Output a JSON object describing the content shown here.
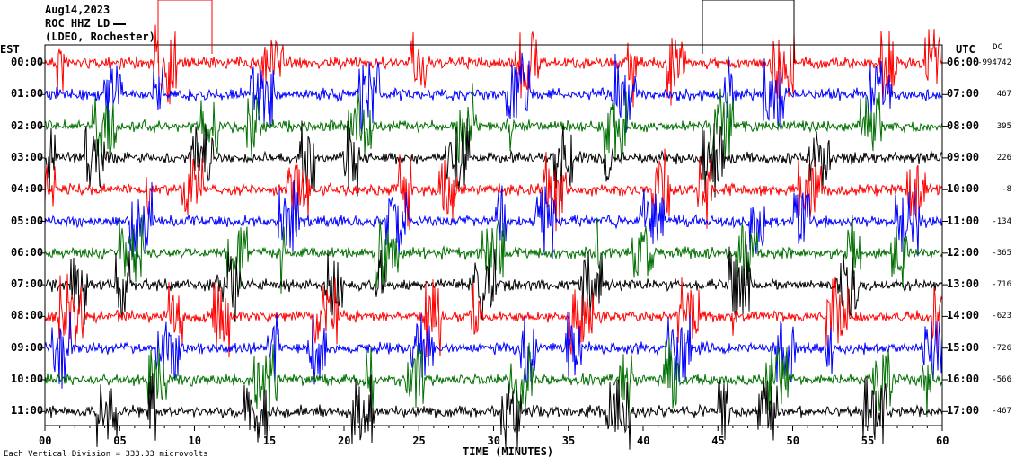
{
  "header": {
    "date": "Aug14,2023",
    "station": "ROC HHZ LD",
    "location": "(LDEO, Rochester)"
  },
  "axis": {
    "left_title": "EST",
    "right_title": "UTC",
    "dc_title": "DC",
    "x_title": "TIME (MINUTES)",
    "scale_note": "Each Vertical Division = 333.33 microvolts"
  },
  "chart_data": {
    "type": "line",
    "title": "",
    "xlabel": "TIME (MINUTES)",
    "ylabel": "",
    "xlim": [
      0,
      60
    ],
    "x_ticks": [
      "00",
      "05",
      "10",
      "15",
      "20",
      "25",
      "30",
      "35",
      "40",
      "45",
      "50",
      "55",
      "60"
    ],
    "trace_colors": [
      "#ff0000",
      "#0000ff",
      "#007000",
      "#000000"
    ],
    "rows": [
      {
        "est": "00:00",
        "utc": "06:00",
        "dc": "-994742"
      },
      {
        "est": "01:00",
        "utc": "07:00",
        "dc": "467"
      },
      {
        "est": "02:00",
        "utc": "08:00",
        "dc": "395"
      },
      {
        "est": "03:00",
        "utc": "09:00",
        "dc": "226"
      },
      {
        "est": "04:00",
        "utc": "10:00",
        "dc": "-8"
      },
      {
        "est": "05:00",
        "utc": "11:00",
        "dc": "-134"
      },
      {
        "est": "06:00",
        "utc": "12:00",
        "dc": "-365"
      },
      {
        "est": "07:00",
        "utc": "13:00",
        "dc": "-716"
      },
      {
        "est": "08:00",
        "utc": "14:00",
        "dc": "-623"
      },
      {
        "est": "09:00",
        "utc": "15:00",
        "dc": "-726"
      },
      {
        "est": "10:00",
        "utc": "16:00",
        "dc": "-566"
      },
      {
        "est": "11:00",
        "utc": "17:00",
        "dc": "-467"
      }
    ]
  }
}
